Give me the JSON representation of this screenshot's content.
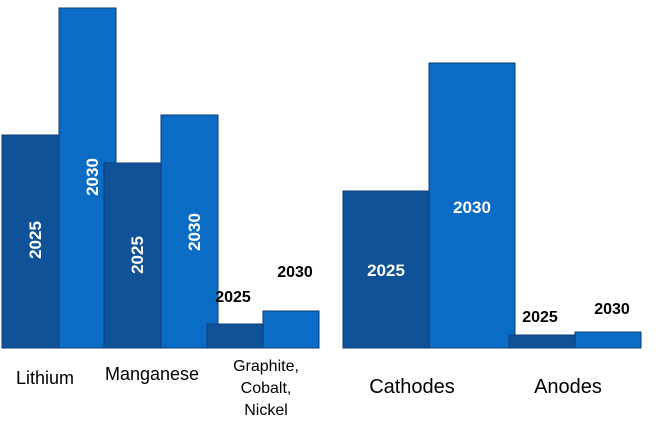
{
  "chart_data": {
    "type": "bar",
    "grouped": true,
    "overlapping_bars": true,
    "axes_visible": false,
    "grid": false,
    "legend": "none",
    "title": "",
    "xlabel": "",
    "ylabel": "",
    "series": [
      {
        "name": "2025",
        "color": "#0F5298"
      },
      {
        "name": "2030",
        "color": "#0A6CC4"
      }
    ],
    "panels": [
      {
        "categories": [
          {
            "label": "Lithium",
            "label_lines": [
              "Lithium"
            ],
            "values": [
              213,
              340
            ],
            "data_label_style": "inside-vertical"
          },
          {
            "label": "Manganese",
            "label_lines": [
              "Manganese"
            ],
            "values": [
              185,
              233
            ],
            "data_label_style": "inside-vertical"
          },
          {
            "label": "Graphite, Cobalt, Nickel",
            "label_lines": [
              "Graphite,",
              "Cobalt,",
              "Nickel"
            ],
            "values": [
              24,
              37
            ],
            "data_label_style": "above"
          }
        ],
        "ylim": [
          0,
          340
        ]
      },
      {
        "categories": [
          {
            "label": "Cathodes",
            "label_lines": [
              "Cathodes"
            ],
            "values": [
              157,
              285
            ],
            "data_label_style": "inside"
          },
          {
            "label": "Anodes",
            "label_lines": [
              "Anodes"
            ],
            "values": [
              13,
              16
            ],
            "data_label_style": "above"
          }
        ],
        "ylim": [
          0,
          340
        ]
      }
    ]
  }
}
